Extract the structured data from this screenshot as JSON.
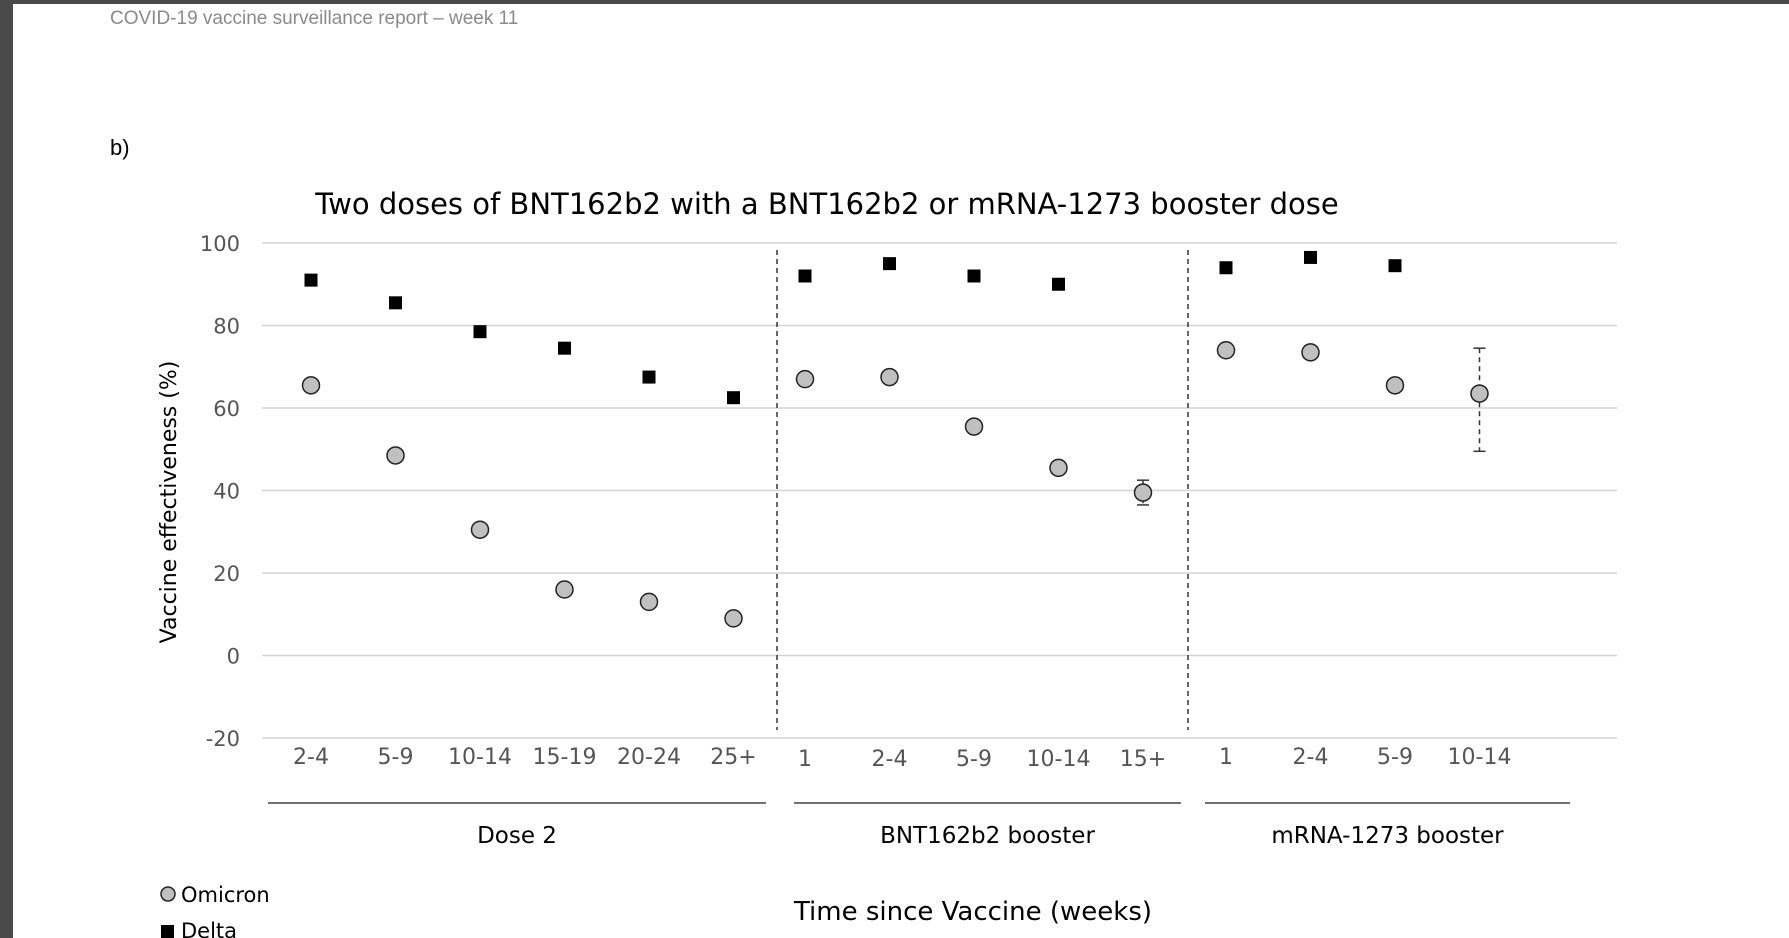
{
  "header": {
    "report_title": "COVID-19 vaccine surveillance report – week 11",
    "panel_label": "b)"
  },
  "chart_data": {
    "type": "scatter",
    "title": "Two doses of BNT162b2 with a BNT162b2 or mRNA-1273 booster dose",
    "xlabel": "Time since Vaccine (weeks)",
    "ylabel": "Vaccine effectiveness (%)",
    "ylim": [
      -20,
      100
    ],
    "yticks": [
      -20,
      0,
      20,
      40,
      60,
      80,
      100
    ],
    "grid": true,
    "legend_position": "bottom-left",
    "groups": [
      {
        "name": "Dose 2",
        "categories": [
          "2-4",
          "5-9",
          "10-14",
          "15-19",
          "20-24",
          "25+"
        ]
      },
      {
        "name": "BNT162b2 booster",
        "categories": [
          "1",
          "2-4",
          "5-9",
          "10-14",
          "15+"
        ]
      },
      {
        "name": "mRNA-1273 booster",
        "categories": [
          "1",
          "2-4",
          "5-9",
          "10-14"
        ]
      }
    ],
    "series": [
      {
        "name": "Omicron",
        "marker": "circle",
        "color": "#c0c0c0",
        "values": [
          65.5,
          48.5,
          30.5,
          16,
          13,
          9,
          67,
          67.5,
          55.5,
          45.5,
          39.5,
          74,
          73.5,
          65.5,
          63.5
        ],
        "error_bars": [
          null,
          null,
          null,
          null,
          null,
          null,
          null,
          null,
          null,
          null,
          [
            36.5,
            42.5
          ],
          null,
          null,
          null,
          [
            49.5,
            74.5
          ]
        ]
      },
      {
        "name": "Delta",
        "marker": "square",
        "color": "#000000",
        "values": [
          91,
          85.5,
          78.5,
          74.5,
          67.5,
          62.5,
          92,
          95,
          92,
          90,
          null,
          94,
          96.5,
          94.5,
          null
        ]
      }
    ]
  }
}
